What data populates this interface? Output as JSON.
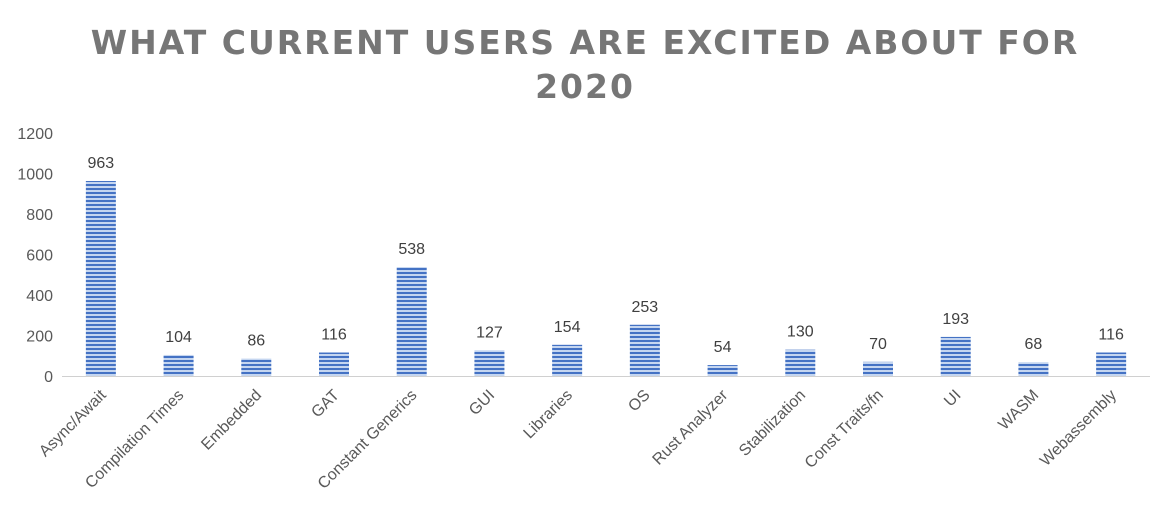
{
  "chart_data": {
    "type": "bar",
    "title_lines": [
      "WHAT CURRENT USERS ARE EXCITED ABOUT FOR",
      "2020"
    ],
    "xlabel": "",
    "ylabel": "",
    "categories": [
      "Async/Await",
      "Compilation Times",
      "Embedded",
      "GAT",
      "Constant Generics",
      "GUI",
      "Libraries",
      "OS",
      "Rust Analyzer",
      "Stabilization",
      "Const Traits/fn",
      "UI",
      "WASM",
      "Webassembly"
    ],
    "values": [
      963,
      104,
      86,
      116,
      538,
      127,
      154,
      253,
      54,
      130,
      70,
      193,
      68,
      116
    ],
    "ylim": [
      0,
      1200
    ],
    "yticks": [
      0,
      200,
      400,
      600,
      800,
      1000,
      1200
    ],
    "grid": false,
    "legend": "none",
    "data_labels": true,
    "bar_pattern": "horizontal-stripes",
    "colors": {
      "bar_stripe_dark": "#4472c4",
      "bar_stripe_light": "#c5d6f0",
      "title": "#767676",
      "tick_text": "#595959",
      "data_label_text": "#404040",
      "axis": "#d0d0d0"
    }
  }
}
